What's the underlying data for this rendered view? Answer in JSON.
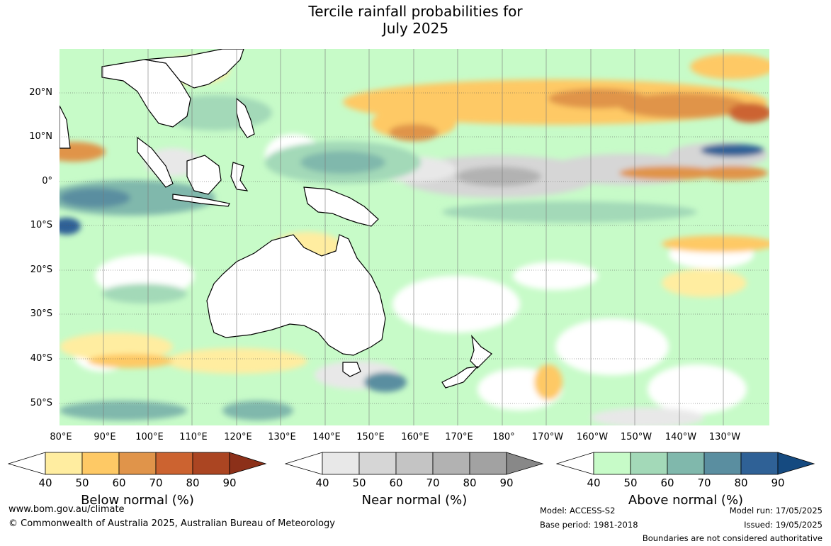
{
  "title": {
    "line1": "Tercile rainfall probabilities for",
    "line2": "July 2025"
  },
  "map": {
    "lat_labels": [
      "20°N",
      "10°N",
      "0°",
      "10°S",
      "20°S",
      "30°S",
      "40°S",
      "50°S"
    ],
    "lon_labels": [
      "80°E",
      "90°E",
      "100°E",
      "110°E",
      "120°E",
      "130°E",
      "140°E",
      "150°E",
      "160°E",
      "170°E",
      "180°",
      "170°W",
      "160°W",
      "150°W",
      "140°W",
      "130°W"
    ]
  },
  "legends": {
    "below": {
      "title": "Below normal (%)",
      "ticks": [
        "40",
        "50",
        "60",
        "70",
        "80",
        "90"
      ],
      "colors": [
        "#ffffff",
        "#ffeda0",
        "#fec965",
        "#e0944a",
        "#cc6330",
        "#ab4522",
        "#8c3019"
      ]
    },
    "near": {
      "title": "Near normal (%)",
      "ticks": [
        "40",
        "50",
        "60",
        "70",
        "80",
        "90"
      ],
      "colors": [
        "#ffffff",
        "#e8e8e8",
        "#d6d6d6",
        "#c4c4c4",
        "#b2b2b2",
        "#a2a2a2",
        "#888888"
      ]
    },
    "above": {
      "title": "Above normal (%)",
      "ticks": [
        "40",
        "50",
        "60",
        "70",
        "80",
        "90"
      ],
      "colors": [
        "#ffffff",
        "#c7fbc8",
        "#a3d9b8",
        "#80b8ac",
        "#5a8ea0",
        "#2f6196",
        "#154a80"
      ]
    }
  },
  "footer": {
    "url": "www.bom.gov.au/climate",
    "copyright": "© Commonwealth of Australia 2025, Australian Bureau of Meteorology",
    "model": "Model: ACCESS-S2",
    "base_period": "Base period: 1981-2018",
    "model_run": "Model run: 17/05/2025",
    "issued": "Issued: 19/05/2025",
    "disclaimer": "Boundaries are not considered authoritative"
  }
}
